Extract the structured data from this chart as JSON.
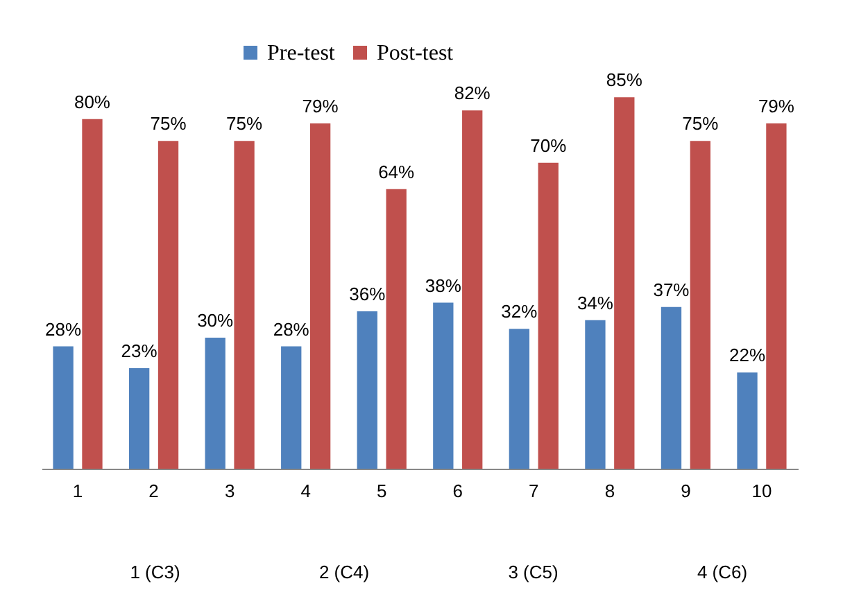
{
  "chart_data": {
    "type": "bar",
    "categories": [
      "1",
      "2",
      "3",
      "4",
      "5",
      "6",
      "7",
      "8",
      "9",
      "10"
    ],
    "series": [
      {
        "name": "Pre-test",
        "color": "#4f81bd",
        "values": [
          28,
          23,
          30,
          28,
          36,
          38,
          32,
          34,
          37,
          22
        ],
        "value_labels": [
          "28%",
          "23%",
          "30%",
          "28%",
          "36%",
          "38%",
          "32%",
          "34%",
          "37%",
          "22%"
        ]
      },
      {
        "name": "Post-test",
        "color": "#c0504d",
        "values": [
          80,
          75,
          75,
          79,
          64,
          82,
          70,
          85,
          75,
          79
        ],
        "value_labels": [
          "80%",
          "75%",
          "75%",
          "79%",
          "64%",
          "82%",
          "70%",
          "85%",
          "75%",
          "79%"
        ]
      }
    ],
    "annotations": [
      "1 (C3)",
      "2 (C4)",
      "3 (C5)",
      "4 (C6)"
    ],
    "legend": "top",
    "grid": false
  }
}
